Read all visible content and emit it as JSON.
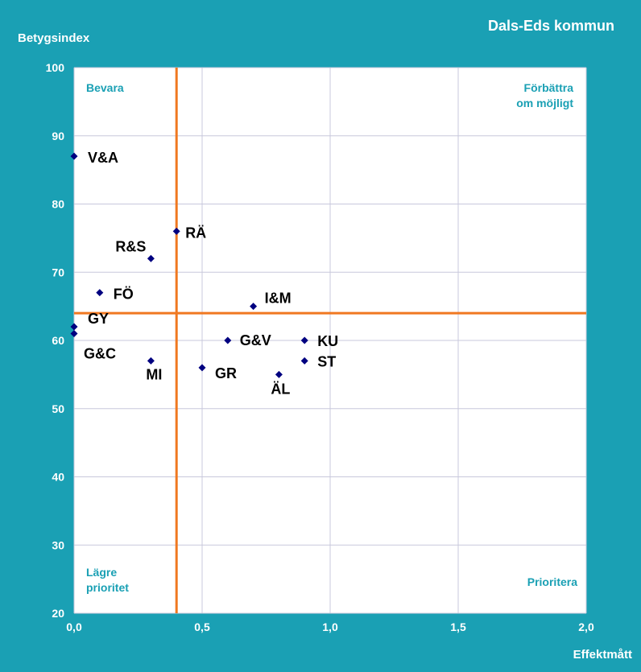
{
  "chart_data": {
    "type": "scatter",
    "title": "Dals-Eds kommun",
    "xlabel": "Effektmått",
    "ylabel": "Betygsindex",
    "xlim": [
      0,
      2
    ],
    "ylim": [
      20,
      100
    ],
    "x_ticks": [
      "0,0",
      "0,5",
      "1,0",
      "1,5",
      "2,0"
    ],
    "y_ticks": [
      "20",
      "30",
      "40",
      "50",
      "60",
      "70",
      "80",
      "90",
      "100"
    ],
    "grid": true,
    "threshold_x": 0.4,
    "threshold_y": 64,
    "quadrant_labels": {
      "top_left": [
        "Bevara"
      ],
      "top_right": [
        "Förbättra",
        "om möjligt"
      ],
      "bottom_left": [
        "Lägre",
        "prioritet"
      ],
      "bottom_right": [
        "Prioritera"
      ]
    },
    "points": [
      {
        "label": "V&A",
        "x": 0.0,
        "y": 87
      },
      {
        "label": "RÄ",
        "x": 0.4,
        "y": 76
      },
      {
        "label": "R&S",
        "x": 0.3,
        "y": 72
      },
      {
        "label": "FÖ",
        "x": 0.1,
        "y": 67
      },
      {
        "label": "I&M",
        "x": 0.7,
        "y": 65
      },
      {
        "label": "GY",
        "x": 0.0,
        "y": 62
      },
      {
        "label": "G&C",
        "x": 0.0,
        "y": 61
      },
      {
        "label": "G&V",
        "x": 0.6,
        "y": 60
      },
      {
        "label": "KU",
        "x": 0.9,
        "y": 60
      },
      {
        "label": "MI",
        "x": 0.3,
        "y": 57
      },
      {
        "label": "ST",
        "x": 0.9,
        "y": 57
      },
      {
        "label": "GR",
        "x": 0.5,
        "y": 56
      },
      {
        "label": "ÄL",
        "x": 0.8,
        "y": 55
      }
    ]
  },
  "colors": {
    "frame": "#1aa0b4",
    "plot_bg": "#ffffff",
    "grid": "#c8c8dc",
    "threshold": "#f07820",
    "marker": "#000080",
    "quadrant_text": "#1aa0b4"
  }
}
